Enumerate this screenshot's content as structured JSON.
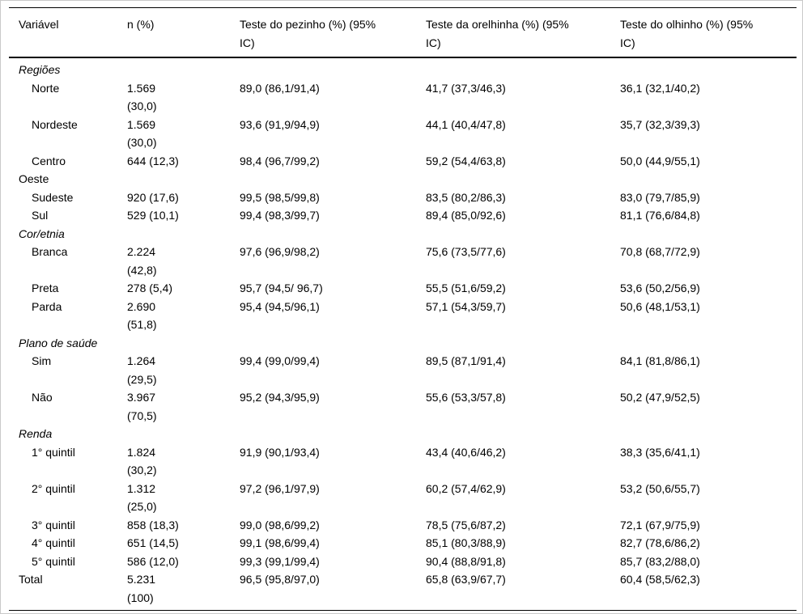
{
  "table": {
    "columns": [
      "Variável",
      "n (%)",
      "Teste do pezinho (%) (95%\nIC)",
      "Teste da orelhinha (%) (95%\nIC)",
      "Teste do olhinho (%) (95%\nIC)"
    ],
    "rows": [
      {
        "style": "section",
        "cells": [
          "Regiões",
          "",
          "",
          "",
          ""
        ]
      },
      {
        "style": "item",
        "cells": [
          "Norte",
          "1.569\n(30,0)",
          "89,0 (86,1/91,4)",
          "41,7 (37,3/46,3)",
          "36,1 (32,1/40,2)"
        ]
      },
      {
        "style": "item",
        "cells": [
          "Nordeste",
          "1.569\n(30,0)",
          "93,6 (91,9/94,9)",
          "44,1 (40,4/47,8)",
          "35,7 (32,3/39,3)"
        ]
      },
      {
        "style": "item",
        "cells": [
          "Centro\nOeste",
          "644 (12,3)",
          "98,4 (96,7/99,2)",
          "59,2 (54,4/63,8)",
          "50,0 (44,9/55,1)"
        ]
      },
      {
        "style": "item",
        "cells": [
          "Sudeste",
          "920 (17,6)",
          "99,5 (98,5/99,8)",
          "83,5 (80,2/86,3)",
          "83,0 (79,7/85,9)"
        ]
      },
      {
        "style": "item",
        "cells": [
          "Sul",
          "529 (10,1)",
          "99,4 (98,3/99,7)",
          "89,4 (85,0/92,6)",
          "81,1 (76,6/84,8)"
        ]
      },
      {
        "style": "section",
        "cells": [
          "Cor/etnia",
          "",
          "",
          "",
          ""
        ]
      },
      {
        "style": "item",
        "cells": [
          "Branca",
          "2.224\n(42,8)",
          "97,6 (96,9/98,2)",
          "75,6 (73,5/77,6)",
          "70,8 (68,7/72,9)"
        ]
      },
      {
        "style": "item",
        "cells": [
          "Preta",
          "278 (5,4)",
          "95,7 (94,5/ 96,7)",
          "55,5 (51,6/59,2)",
          "53,6 (50,2/56,9)"
        ]
      },
      {
        "style": "item",
        "cells": [
          "Parda",
          "2.690\n(51,8)",
          "95,4 (94,5/96,1)",
          "57,1 (54,3/59,7)",
          "50,6 (48,1/53,1)"
        ]
      },
      {
        "style": "section",
        "cells": [
          "Plano de saúde",
          "",
          "",
          "",
          ""
        ]
      },
      {
        "style": "item",
        "cells": [
          "Sim",
          "1.264\n(29,5)",
          "99,4 (99,0/99,4)",
          "89,5 (87,1/91,4)",
          "84,1 (81,8/86,1)"
        ]
      },
      {
        "style": "item",
        "cells": [
          "Não",
          "3.967\n(70,5)",
          "95,2 (94,3/95,9)",
          "55,6 (53,3/57,8)",
          "50,2 (47,9/52,5)"
        ]
      },
      {
        "style": "section",
        "cells": [
          "Renda",
          "",
          "",
          "",
          ""
        ]
      },
      {
        "style": "item",
        "cells": [
          "1° quintil",
          "1.824\n(30,2)",
          "91,9 (90,1/93,4)",
          "43,4 (40,6/46,2)",
          "38,3 (35,6/41,1)"
        ]
      },
      {
        "style": "item",
        "cells": [
          "2° quintil",
          "1.312\n(25,0)",
          "97,2 (96,1/97,9)",
          "60,2 (57,4/62,9)",
          "53,2 (50,6/55,7)"
        ]
      },
      {
        "style": "item",
        "cells": [
          "3° quintil",
          "858 (18,3)",
          "99,0 (98,6/99,2)",
          "78,5 (75,6/87,2)",
          "72,1 (67,9/75,9)"
        ]
      },
      {
        "style": "item",
        "cells": [
          "4° quintil",
          "651 (14,5)",
          "99,1 (98,6/99,4)",
          "85,1 (80,3/88,9)",
          "82,7 (78,6/86,2)"
        ]
      },
      {
        "style": "item",
        "cells": [
          "5° quintil",
          "586 (12,0)",
          "99,3 (99,1/99,4)",
          "90,4 (88,8/91,8)",
          "85,7 (83,2/88,0)"
        ]
      },
      {
        "style": "total",
        "cells": [
          "Total",
          "5.231\n(100)",
          "96,5 (95,8/97,0)",
          "65,8 (63,9/67,7)",
          "60,4 (58,5/62,3)"
        ]
      }
    ]
  }
}
